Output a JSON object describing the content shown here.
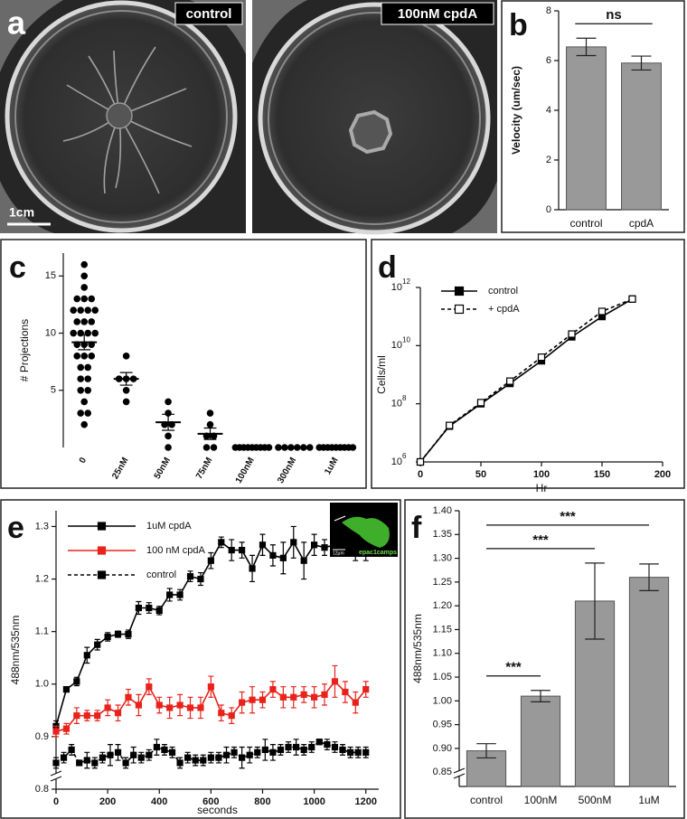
{
  "photos": {
    "panel": "a",
    "captions": [
      "control",
      "100nM cpdA"
    ],
    "scale_bar": "1cm"
  },
  "chart_data": [
    {
      "panel": "b",
      "type": "bar",
      "ylabel": "Velocity (um/sec)",
      "categories": [
        "control",
        "cpdA"
      ],
      "values": [
        6.55,
        5.9
      ],
      "errors": [
        0.35,
        0.28
      ],
      "color": "#999999",
      "ylim": [
        0,
        8
      ],
      "yticks": [
        0,
        2,
        4,
        6,
        8
      ],
      "comparisons": [
        {
          "text": "ns",
          "from": "control",
          "to": "cpdA"
        }
      ]
    },
    {
      "panel": "c",
      "type": "dotplot",
      "ylabel": "# Projections",
      "categories": [
        "0",
        "25nM",
        "50nM",
        "75nM",
        "100nM",
        "300nM",
        "1uM"
      ],
      "points": [
        [
          16,
          15,
          14,
          13,
          13,
          13,
          12,
          12,
          12,
          12,
          11,
          11,
          11,
          10,
          10,
          10,
          10,
          9,
          9,
          9,
          8,
          8,
          8,
          7,
          7,
          6,
          6,
          5,
          5,
          4,
          3,
          3,
          2
        ],
        [
          8,
          6,
          6,
          6,
          5,
          4
        ],
        [
          4,
          3,
          2,
          2,
          1,
          0
        ],
        [
          3,
          2,
          1,
          1,
          0,
          0
        ],
        [
          0,
          0,
          0,
          0,
          0,
          0,
          0,
          0,
          0
        ],
        [
          0,
          0,
          0,
          0,
          0,
          0
        ],
        [
          0,
          0,
          0,
          0,
          0,
          0,
          0,
          0,
          0
        ]
      ],
      "means": [
        9.2,
        6,
        2.2,
        1.2,
        0,
        0,
        0
      ],
      "errors": [
        0.65,
        0.55,
        0.7,
        0.5,
        0,
        0,
        0
      ],
      "color": "#000000",
      "ylim": [
        0,
        17
      ],
      "yticks": [
        5,
        10,
        15
      ]
    },
    {
      "panel": "d",
      "type": "line",
      "xlabel": "Hr",
      "ylabel": "Cells/ml",
      "log_y": true,
      "xlim": [
        0,
        200
      ],
      "xticks": [
        0,
        50,
        100,
        150,
        200
      ],
      "ylim": [
        1000000.0,
        1000000000000.0
      ],
      "yticks": [
        {
          "value": 1000000.0,
          "label": "10",
          "exponent": "6"
        },
        {
          "value": 100000000.0,
          "label": "10",
          "exponent": "8"
        },
        {
          "value": 10000000000.0,
          "label": "10",
          "exponent": "10"
        },
        {
          "value": 1000000000000.0,
          "label": "10",
          "exponent": "12"
        }
      ],
      "legend": "upper left",
      "series": [
        {
          "name": "control",
          "color": "#000000",
          "marker": "square",
          "dash": false,
          "x": [
            0,
            24,
            50,
            74,
            100,
            125,
            150,
            175
          ],
          "values": [
            1000000.0,
            17000000.0,
            100000000.0,
            500000000.0,
            3000000000.0,
            20000000000.0,
            100000000000.0,
            400000000000.0
          ]
        },
        {
          "name": "+ cpdA",
          "color": "#000000",
          "marker": "open square",
          "dash": true,
          "x": [
            0,
            24,
            50,
            74,
            100,
            125,
            150,
            175
          ],
          "values": [
            1000000.0,
            18000000.0,
            110000000.0,
            600000000.0,
            4000000000.0,
            25000000000.0,
            150000000000.0,
            400000000000.0
          ]
        }
      ]
    },
    {
      "panel": "e",
      "type": "line",
      "xlabel": "seconds",
      "ylabel": "488nm/535nm",
      "xlim": [
        0,
        1250
      ],
      "xticks": [
        0,
        200,
        400,
        600,
        800,
        1000,
        1200
      ],
      "ylim": [
        0.8,
        1.33
      ],
      "yticks": [
        0.8,
        0.9,
        {
          "value": 1,
          "label": "1.0"
        },
        1.1,
        1.2,
        1.3
      ],
      "axis_break": true,
      "legend": "upper left",
      "inset": {
        "scale_bar": "12μm",
        "label": "epac1camps"
      },
      "series": [
        {
          "name": "1uM cpdA",
          "color": "#000000",
          "marker": "square",
          "dash": false,
          "x": [
            0,
            40,
            80,
            120,
            160,
            200,
            240,
            280,
            320,
            360,
            400,
            440,
            480,
            520,
            560,
            600,
            640,
            680,
            720,
            760,
            800,
            840,
            880,
            920,
            960,
            1000,
            1040,
            1080,
            1120,
            1160,
            1200
          ],
          "values": [
            0.92,
            0.99,
            1.005,
            1.055,
            1.075,
            1.09,
            1.095,
            1.095,
            1.145,
            1.145,
            1.14,
            1.17,
            1.17,
            1.205,
            1.2,
            1.235,
            1.27,
            1.255,
            1.255,
            1.22,
            1.265,
            1.245,
            1.24,
            1.27,
            1.235,
            1.265,
            1.26,
            1.265,
            1.27,
            1.25,
            1.255
          ],
          "errors": [
            0.01,
            0.005,
            0.008,
            0.015,
            0.01,
            0.008,
            0.006,
            0.008,
            0.012,
            0.01,
            0.008,
            0.012,
            0.01,
            0.01,
            0.012,
            0.015,
            0.01,
            0.02,
            0.015,
            0.025,
            0.02,
            0.02,
            0.03,
            0.03,
            0.035,
            0.02,
            0.015,
            0.01,
            0.01,
            0.015,
            0.02
          ]
        },
        {
          "name": "100 nM cpdA",
          "color": "#e8231b",
          "marker": "square",
          "dash": false,
          "x": [
            0,
            40,
            80,
            120,
            160,
            200,
            240,
            280,
            320,
            360,
            400,
            440,
            480,
            520,
            560,
            600,
            640,
            680,
            720,
            760,
            800,
            840,
            880,
            920,
            960,
            1000,
            1040,
            1080,
            1120,
            1160,
            1200
          ],
          "values": [
            0.91,
            0.915,
            0.94,
            0.94,
            0.94,
            0.955,
            0.945,
            0.975,
            0.96,
            0.995,
            0.96,
            0.955,
            0.96,
            0.955,
            0.955,
            0.995,
            0.945,
            0.94,
            0.965,
            0.97,
            0.97,
            0.99,
            0.975,
            0.975,
            0.98,
            0.975,
            0.98,
            1.005,
            0.985,
            0.965,
            0.99
          ],
          "errors": [
            0.01,
            0.01,
            0.015,
            0.01,
            0.01,
            0.015,
            0.015,
            0.015,
            0.02,
            0.015,
            0.015,
            0.02,
            0.02,
            0.02,
            0.02,
            0.02,
            0.015,
            0.015,
            0.02,
            0.025,
            0.015,
            0.015,
            0.02,
            0.02,
            0.015,
            0.02,
            0.02,
            0.03,
            0.02,
            0.02,
            0.015
          ]
        },
        {
          "name": "control",
          "color": "#000000",
          "marker": "square",
          "dash": true,
          "x": [
            0,
            30,
            60,
            90,
            120,
            150,
            180,
            210,
            240,
            270,
            300,
            330,
            360,
            390,
            420,
            450,
            480,
            510,
            540,
            570,
            600,
            630,
            660,
            690,
            720,
            750,
            780,
            810,
            840,
            870,
            900,
            930,
            960,
            990,
            1020,
            1050,
            1080,
            1110,
            1140,
            1170,
            1200
          ],
          "values": [
            0.85,
            0.86,
            0.875,
            0.85,
            0.855,
            0.85,
            0.86,
            0.865,
            0.87,
            0.85,
            0.865,
            0.86,
            0.865,
            0.88,
            0.875,
            0.87,
            0.85,
            0.86,
            0.855,
            0.855,
            0.86,
            0.86,
            0.865,
            0.87,
            0.86,
            0.865,
            0.87,
            0.875,
            0.87,
            0.875,
            0.88,
            0.88,
            0.875,
            0.88,
            0.89,
            0.885,
            0.88,
            0.875,
            0.87,
            0.87,
            0.87
          ],
          "errors": [
            0.01,
            0.01,
            0.01,
            0.005,
            0.015,
            0.01,
            0.01,
            0.02,
            0.015,
            0.01,
            0.015,
            0.01,
            0.01,
            0.015,
            0.01,
            0.01,
            0.01,
            0.01,
            0.01,
            0.01,
            0.01,
            0.01,
            0.015,
            0.01,
            0.02,
            0.015,
            0.01,
            0.02,
            0.015,
            0.01,
            0.01,
            0.015,
            0.01,
            0.01,
            0.005,
            0.01,
            0.01,
            0.01,
            0.01,
            0.01,
            0.01
          ]
        }
      ]
    },
    {
      "panel": "f",
      "type": "bar",
      "ylabel": "488nm/535nm",
      "categories": [
        "control",
        "100nM",
        "500nM",
        "1uM"
      ],
      "values": [
        0.895,
        1.01,
        1.21,
        1.26
      ],
      "errors": [
        0.015,
        0.012,
        0.08,
        0.028
      ],
      "color": "#999999",
      "ylim": [
        0.82,
        1.4
      ],
      "yticks": [
        0.85,
        {
          "value": 0.9,
          "label": "0.90"
        },
        0.95,
        {
          "value": 1,
          "label": "1.00"
        },
        1.05,
        {
          "value": 1.1,
          "label": "1.10"
        },
        1.15,
        {
          "value": 1.2,
          "label": "1.20"
        },
        1.25,
        {
          "value": 1.3,
          "label": "1.30"
        },
        1.35,
        {
          "value": 1.4,
          "label": "1.40"
        }
      ],
      "axis_break": true,
      "comparisons": [
        {
          "text": "***",
          "from": "control",
          "to": "100nM"
        },
        {
          "text": "***",
          "from": "control",
          "to": "500nM"
        },
        {
          "text": "***",
          "from": "control",
          "to": "1uM"
        }
      ]
    }
  ]
}
